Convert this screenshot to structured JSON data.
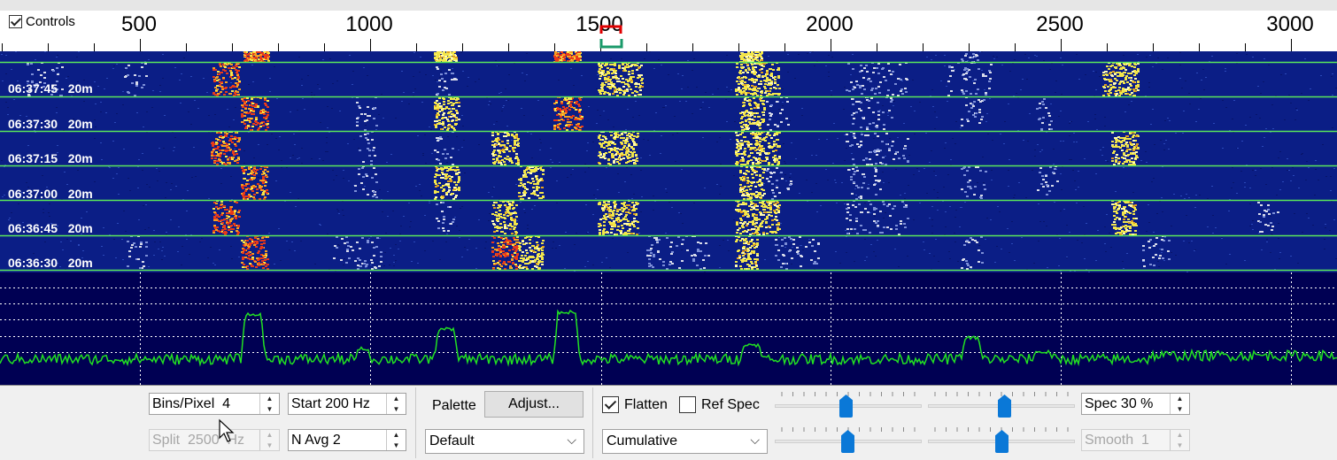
{
  "controls": {
    "label": "Controls",
    "checked": true
  },
  "ruler": {
    "labels": [
      "500",
      "1000",
      "1500",
      "2000",
      "2500",
      "3000"
    ]
  },
  "waterfall": {
    "rows": [
      {
        "time": "06:37:45",
        "band": "20m"
      },
      {
        "time": "06:37:30",
        "band": "20m"
      },
      {
        "time": "06:37:15",
        "band": "20m"
      },
      {
        "time": "06:37:00",
        "band": "20m"
      },
      {
        "time": "06:36:45",
        "band": "20m"
      },
      {
        "time": "06:36:30",
        "band": "20m"
      }
    ]
  },
  "panel": {
    "bins_pixel": "Bins/Pixel  4",
    "start": "Start 200 Hz",
    "split": "Split  2500  Hz",
    "navg": "N Avg 2",
    "palette_label": "Palette",
    "adjust_button": "Adjust...",
    "palette_value": "Default",
    "flatten_label": "Flatten",
    "flatten_checked": true,
    "refspec_label": "Ref Spec",
    "refspec_checked": false,
    "mode_value": "Cumulative",
    "spec": "Spec 30 %",
    "smooth": "Smooth  1"
  },
  "colors": {
    "waterfall_bg": "#0b1e86",
    "trace": "#22e022",
    "signal_hot": "#e83a1a",
    "signal_warm": "#f0e040",
    "slider_thumb": "#0a78d7"
  }
}
